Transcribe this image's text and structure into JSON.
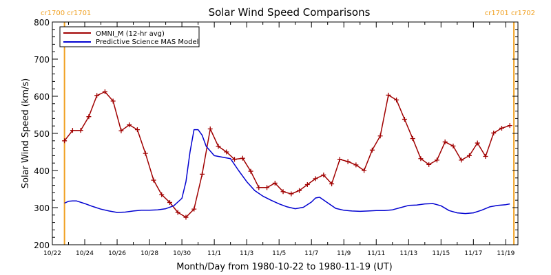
{
  "chart_data": {
    "type": "line",
    "title": "Solar Wind Speed Comparisons",
    "xlabel": "Month/Day from 1980-10-22 to 1980-11-19 (UT)",
    "ylabel": "Solar Wind Speed (km/s)",
    "xlim": [
      "1980-10-22T00:00",
      "1980-11-19T18:00"
    ],
    "ylim": [
      200,
      800
    ],
    "yticks": [
      200,
      300,
      400,
      500,
      600,
      700,
      800
    ],
    "xtick_labels": [
      {
        "t": "1980-10-22",
        "label": "10/22"
      },
      {
        "t": "1980-10-24",
        "label": "10/24"
      },
      {
        "t": "1980-10-26",
        "label": "10/26"
      },
      {
        "t": "1980-10-28",
        "label": "10/28"
      },
      {
        "t": "1980-10-30",
        "label": "10/30"
      },
      {
        "t": "1980-11-01",
        "label": "11/1"
      },
      {
        "t": "1980-11-03",
        "label": "11/3"
      },
      {
        "t": "1980-11-05",
        "label": "11/5"
      },
      {
        "t": "1980-11-07",
        "label": "11/7"
      },
      {
        "t": "1980-11-09",
        "label": "11/9"
      },
      {
        "t": "1980-11-11",
        "label": "11/11"
      },
      {
        "t": "1980-11-13",
        "label": "11/13"
      },
      {
        "t": "1980-11-15",
        "label": "11/15"
      },
      {
        "t": "1980-11-17",
        "label": "11/17"
      },
      {
        "t": "1980-11-19",
        "label": "11/19"
      }
    ],
    "legend_position": "top-left",
    "carrington_boundaries": [
      {
        "t": "1980-10-22T18:00",
        "label": "cr1700 cr1701",
        "label_side": "left"
      },
      {
        "t": "1980-11-19T12:00",
        "label": "cr1701 cr1702",
        "label_side": "right"
      }
    ],
    "colors": {
      "axes": "#000000",
      "omni": "#a00000",
      "model": "#0000d0",
      "boundary": "#f0a020"
    },
    "series": [
      {
        "name": "OMNI_M (12-hr avg)",
        "color": "#a00000",
        "marker": "+",
        "points": [
          [
            "1980-10-22T18:00",
            480
          ],
          [
            "1980-10-23T06:00",
            508
          ],
          [
            "1980-10-23T18:00",
            508
          ],
          [
            "1980-10-24T06:00",
            545
          ],
          [
            "1980-10-24T18:00",
            602
          ],
          [
            "1980-10-25T06:00",
            612
          ],
          [
            "1980-10-25T18:00",
            587
          ],
          [
            "1980-10-26T06:00",
            507
          ],
          [
            "1980-10-26T18:00",
            523
          ],
          [
            "1980-10-27T06:00",
            510
          ],
          [
            "1980-10-27T18:00",
            446
          ],
          [
            "1980-10-28T06:00",
            374
          ],
          [
            "1980-10-28T18:00",
            335
          ],
          [
            "1980-10-29T06:00",
            314
          ],
          [
            "1980-10-29T18:00",
            287
          ],
          [
            "1980-10-30T06:00",
            274
          ],
          [
            "1980-10-30T18:00",
            296
          ],
          [
            "1980-10-31T06:00",
            390
          ],
          [
            "1980-10-31T18:00",
            512
          ],
          [
            "1980-11-01T06:00",
            465
          ],
          [
            "1980-11-01T18:00",
            450
          ],
          [
            "1980-11-02T06:00",
            430
          ],
          [
            "1980-11-02T18:00",
            433
          ],
          [
            "1980-11-03T06:00",
            398
          ],
          [
            "1980-11-03T18:00",
            354
          ],
          [
            "1980-11-04T06:00",
            354
          ],
          [
            "1980-11-04T18:00",
            366
          ],
          [
            "1980-11-05T06:00",
            343
          ],
          [
            "1980-11-05T18:00",
            337
          ],
          [
            "1980-11-06T06:00",
            346
          ],
          [
            "1980-11-06T18:00",
            362
          ],
          [
            "1980-11-07T06:00",
            378
          ],
          [
            "1980-11-07T18:00",
            388
          ],
          [
            "1980-11-08T06:00",
            364
          ],
          [
            "1980-11-08T18:00",
            430
          ],
          [
            "1980-11-09T06:00",
            424
          ],
          [
            "1980-11-09T18:00",
            415
          ],
          [
            "1980-11-10T06:00",
            400
          ],
          [
            "1980-11-10T18:00",
            455
          ],
          [
            "1980-11-11T06:00",
            493
          ],
          [
            "1980-11-11T18:00",
            603
          ],
          [
            "1980-11-12T06:00",
            590
          ],
          [
            "1980-11-12T18:00",
            538
          ],
          [
            "1980-11-13T06:00",
            486
          ],
          [
            "1980-11-13T18:00",
            432
          ],
          [
            "1980-11-14T06:00",
            416
          ],
          [
            "1980-11-14T18:00",
            428
          ],
          [
            "1980-11-15T06:00",
            477
          ],
          [
            "1980-11-15T18:00",
            466
          ],
          [
            "1980-11-16T06:00",
            428
          ],
          [
            "1980-11-16T18:00",
            440
          ],
          [
            "1980-11-17T06:00",
            474
          ],
          [
            "1980-11-17T18:00",
            438
          ],
          [
            "1980-11-18T06:00",
            501
          ],
          [
            "1980-11-18T18:00",
            514
          ],
          [
            "1980-11-19T06:00",
            521
          ]
        ]
      },
      {
        "name": "Predictive Science MAS Model",
        "color": "#0000d0",
        "marker": "none",
        "points": [
          [
            "1980-10-22T18:00",
            312
          ],
          [
            "1980-10-23T00:00",
            317
          ],
          [
            "1980-10-23T06:00",
            318
          ],
          [
            "1980-10-23T12:00",
            318
          ],
          [
            "1980-10-24T00:00",
            311
          ],
          [
            "1980-10-24T12:00",
            303
          ],
          [
            "1980-10-25T00:00",
            296
          ],
          [
            "1980-10-25T12:00",
            291
          ],
          [
            "1980-10-26T00:00",
            287
          ],
          [
            "1980-10-26T12:00",
            288
          ],
          [
            "1980-10-27T00:00",
            291
          ],
          [
            "1980-10-27T12:00",
            293
          ],
          [
            "1980-10-28T00:00",
            293
          ],
          [
            "1980-10-28T12:00",
            294
          ],
          [
            "1980-10-29T00:00",
            297
          ],
          [
            "1980-10-29T12:00",
            305
          ],
          [
            "1980-10-30T00:00",
            325
          ],
          [
            "1980-10-30T06:00",
            370
          ],
          [
            "1980-10-30T12:00",
            450
          ],
          [
            "1980-10-30T18:00",
            510
          ],
          [
            "1980-10-31T00:00",
            510
          ],
          [
            "1980-10-31T06:00",
            495
          ],
          [
            "1980-10-31T12:00",
            465
          ],
          [
            "1980-11-01T00:00",
            440
          ],
          [
            "1980-11-01T12:00",
            436
          ],
          [
            "1980-11-02T00:00",
            432
          ],
          [
            "1980-11-02T12:00",
            400
          ],
          [
            "1980-11-03T00:00",
            370
          ],
          [
            "1980-11-03T12:00",
            346
          ],
          [
            "1980-11-04T00:00",
            331
          ],
          [
            "1980-11-04T12:00",
            320
          ],
          [
            "1980-11-05T00:00",
            310
          ],
          [
            "1980-11-05T12:00",
            302
          ],
          [
            "1980-11-06T00:00",
            297
          ],
          [
            "1980-11-06T12:00",
            301
          ],
          [
            "1980-11-07T00:00",
            315
          ],
          [
            "1980-11-07T06:00",
            326
          ],
          [
            "1980-11-07T12:00",
            328
          ],
          [
            "1980-11-08T00:00",
            313
          ],
          [
            "1980-11-08T12:00",
            298
          ],
          [
            "1980-11-09T00:00",
            293
          ],
          [
            "1980-11-09T12:00",
            291
          ],
          [
            "1980-11-10T00:00",
            290
          ],
          [
            "1980-11-10T12:00",
            291
          ],
          [
            "1980-11-11T00:00",
            292
          ],
          [
            "1980-11-11T12:00",
            292
          ],
          [
            "1980-11-12T00:00",
            294
          ],
          [
            "1980-11-12T12:00",
            300
          ],
          [
            "1980-11-13T00:00",
            306
          ],
          [
            "1980-11-13T12:00",
            307
          ],
          [
            "1980-11-14T00:00",
            310
          ],
          [
            "1980-11-14T12:00",
            311
          ],
          [
            "1980-11-15T00:00",
            305
          ],
          [
            "1980-11-15T12:00",
            292
          ],
          [
            "1980-11-16T00:00",
            286
          ],
          [
            "1980-11-16T12:00",
            284
          ],
          [
            "1980-11-17T00:00",
            286
          ],
          [
            "1980-11-17T12:00",
            293
          ],
          [
            "1980-11-18T00:00",
            302
          ],
          [
            "1980-11-18T12:00",
            306
          ],
          [
            "1980-11-19T00:00",
            308
          ],
          [
            "1980-11-19T06:00",
            310
          ]
        ]
      }
    ]
  }
}
